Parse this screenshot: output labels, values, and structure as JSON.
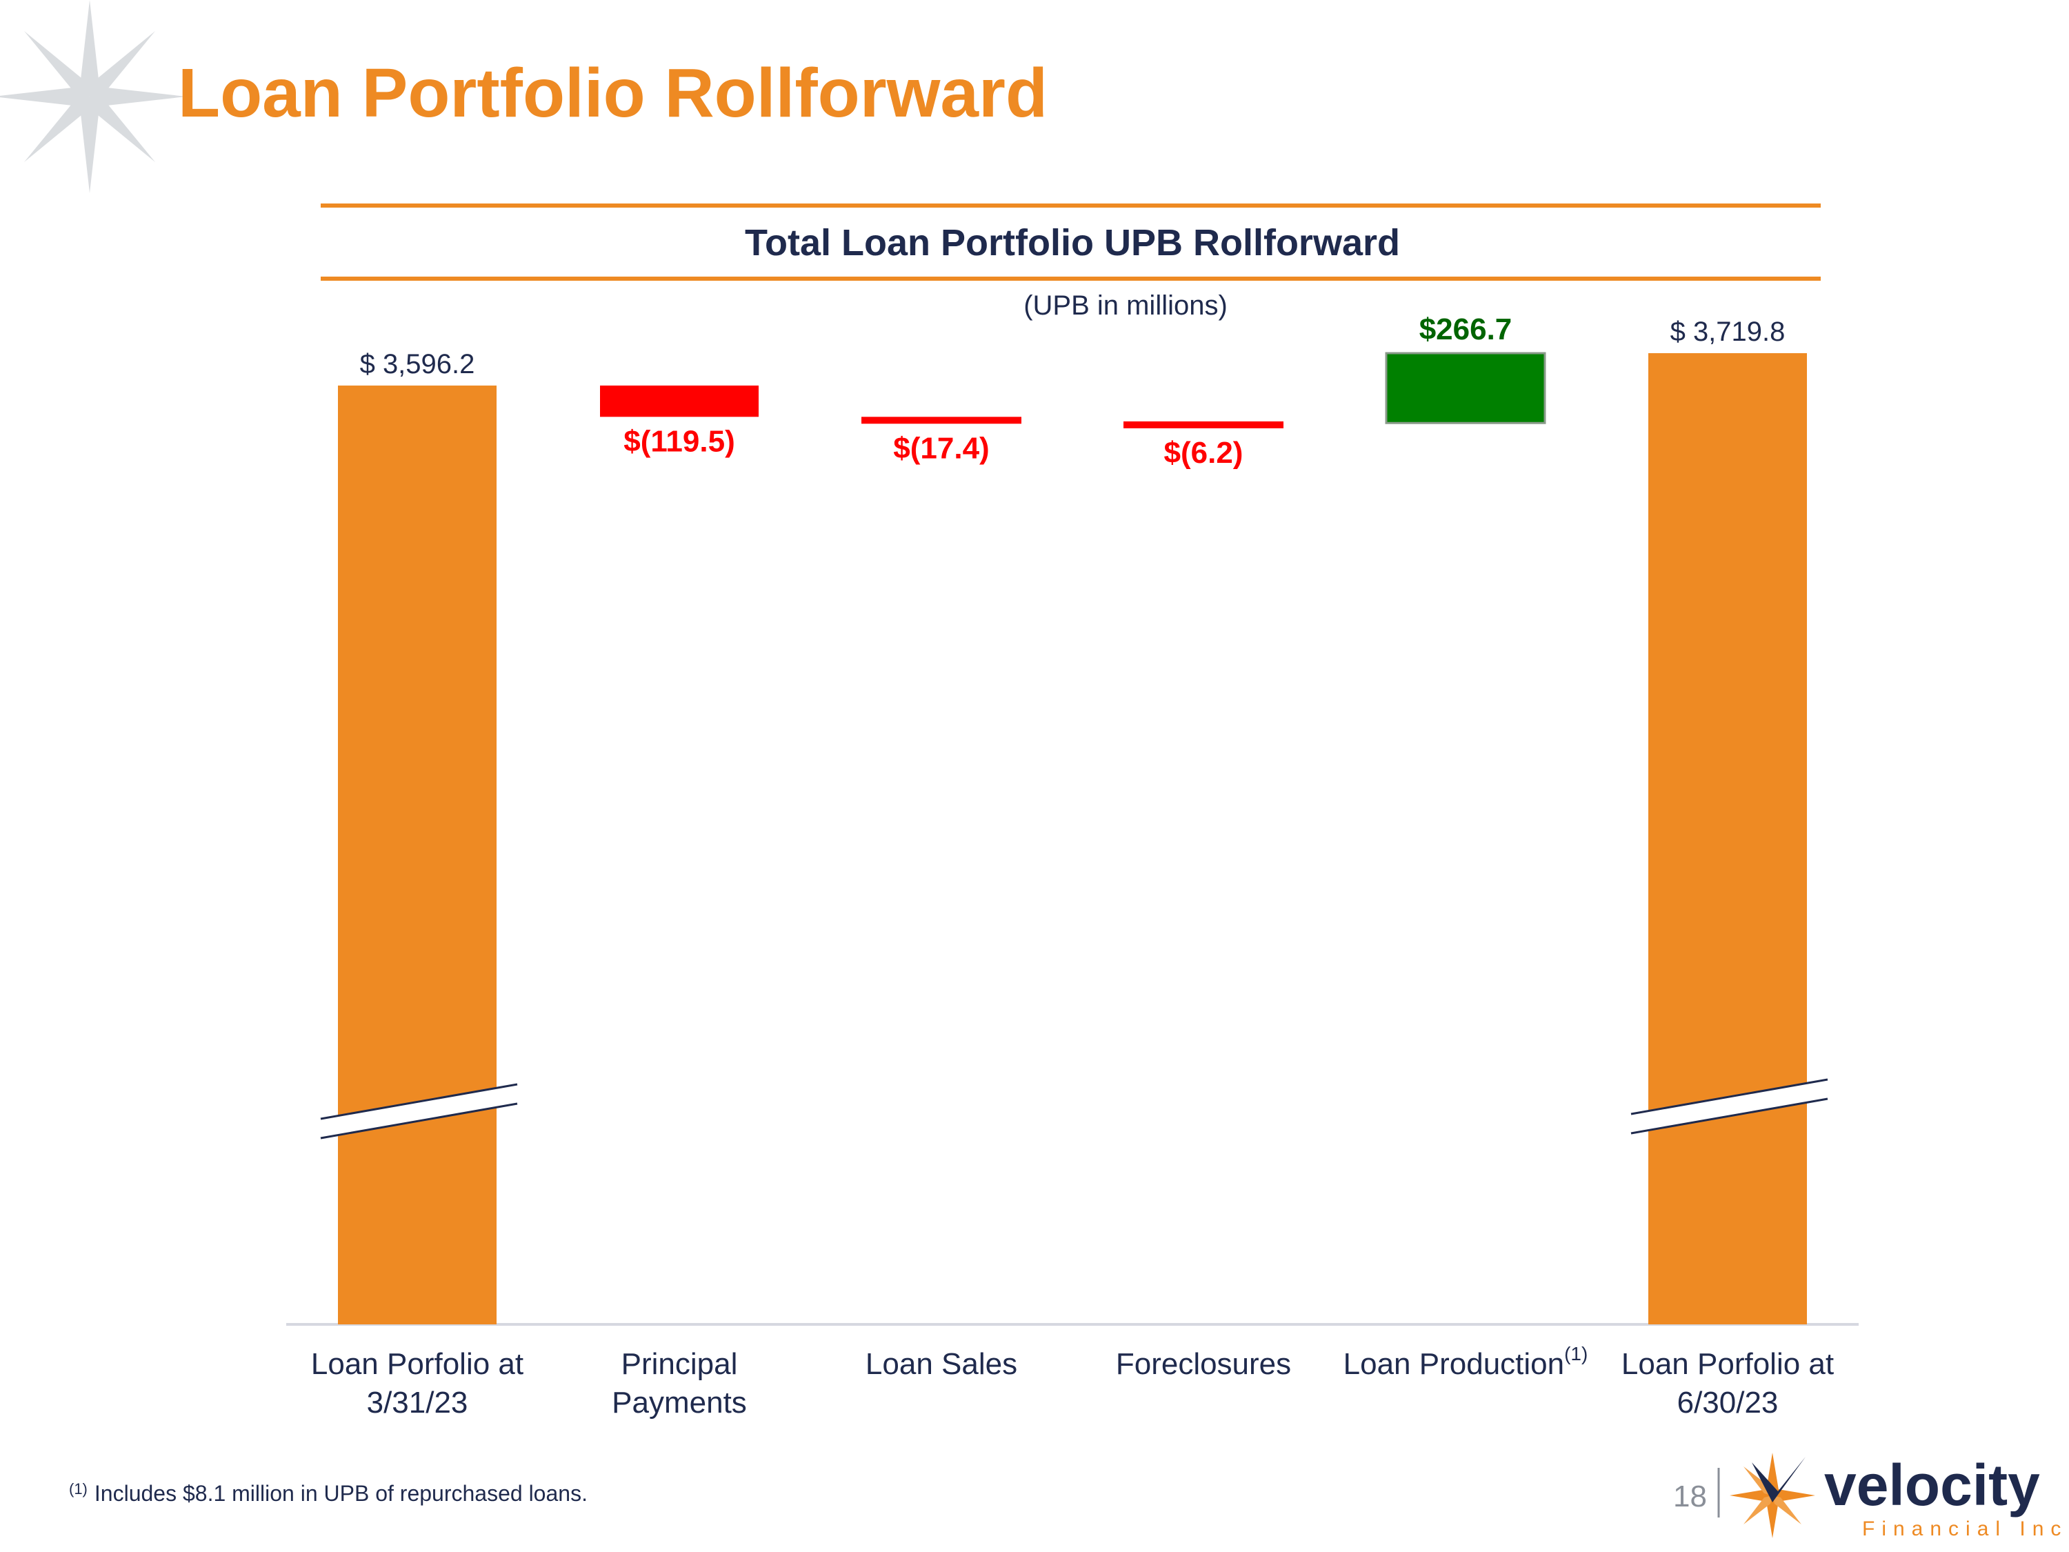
{
  "slide": {
    "title": "Loan Portfolio Rollforward",
    "page_number": "18",
    "footnote_marker": "(1)",
    "footnote_text": "Includes $8.1 million in UPB of repurchased loans."
  },
  "logo": {
    "name": "velocity",
    "tagline": "Financial Inc."
  },
  "colors": {
    "accent": "#ee8a23",
    "navy": "#1f2a4d",
    "decrease": "#ff0000",
    "increase": "#008000",
    "increase_label": "#006400"
  },
  "chart_data": {
    "type": "waterfall",
    "title": "Total Loan Portfolio UPB Rollforward",
    "subtitle": "(UPB in millions)",
    "axis_break": true,
    "categories": [
      [
        "Loan Porfolio at",
        "3/31/23"
      ],
      [
        "Principal",
        "Payments"
      ],
      [
        "Loan Sales"
      ],
      [
        "Foreclosures"
      ],
      [
        "Loan Production"
      ],
      [
        "Loan Porfolio at",
        "6/30/23"
      ]
    ],
    "category_superscripts": [
      "",
      "",
      "",
      "",
      "(1)",
      ""
    ],
    "steps": [
      {
        "kind": "total",
        "value": 3596.2,
        "label": "$ 3,596.2"
      },
      {
        "kind": "decrease",
        "value": -119.5,
        "label": "$(119.5)"
      },
      {
        "kind": "decrease",
        "value": -17.4,
        "label": "$(17.4)"
      },
      {
        "kind": "decrease",
        "value": -6.2,
        "label": "$(6.2)"
      },
      {
        "kind": "increase",
        "value": 266.7,
        "label": "$266.7"
      },
      {
        "kind": "total",
        "value": 3719.8,
        "label": "$ 3,719.8"
      }
    ]
  }
}
